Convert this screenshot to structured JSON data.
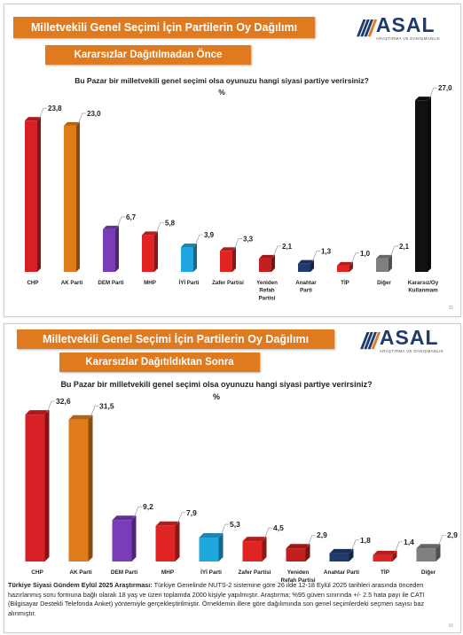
{
  "slide1": {
    "title": "Milletvekili Genel Seçimi İçin Partilerin Oy Dağılımı",
    "subtitle": "Kararsızlar Dağıtılmadan Önce",
    "question": "Bu Pazar bir milletvekili genel seçimi olsa oyunuzu hangi siyasi partiye verirsiniz?",
    "unit": "%",
    "page": "15"
  },
  "slide2": {
    "title": "Milletvekili Genel Seçimi İçin Partilerin Oy Dağılımı",
    "subtitle": "Kararsızlar Dağıtıldıktan Sonra",
    "question": "Bu Pazar bir milletvekili genel seçimi olsa oyunuzu hangi siyasi partiye verirsiniz?",
    "unit": "%",
    "page": "16",
    "footnote_title": "Türkiye Siyasi Gündem Eylül 2025 Araştırması:",
    "footnote_text": "Türkiye Genelinde NUTS-2 sistemine göre 26 ilde 12-18 Eylül 2025 tarihleri arasında önceden hazırlanmış soru formuna bağlı olarak 18 yaş ve üzeri toplamda 2000 kişiyle yapılmıştır. Araştırma; %95 güven sınırında +/- 2.5 hata payı ile CATI (Bilgisayar Destekli Telefonda Anket) yöntemiyle gerçekleştirilmiştir. Örneklemin illere göre dağılımında son genel seçimlerdeki seçmen sayısı baz alınmıştır."
  },
  "logo": {
    "name": "ASAL",
    "tagline": "ARAŞTIRMA VE DANIŞMANLIK"
  },
  "colors": {
    "banner": "#e07a1f",
    "CHP": "#d81f26",
    "AK Parti": "#e07b1a",
    "DEM Parti": "#7a3db8",
    "MHP": "#e02424",
    "İYİ Parti": "#1fa8e0",
    "Zafer Partisi": "#e02424",
    "Yeniden Refah Partisi": "#c41e1e",
    "Anahtar Parti": "#1f3b6e",
    "TİP": "#e02424",
    "Diğer": "#7f7f7f",
    "Kararsız/Oy Kullanmam": "#111111"
  },
  "chart_data": [
    {
      "type": "bar",
      "title": "Kararsızlar Dağıtılmadan Önce",
      "categories": [
        "CHP",
        "AK Parti",
        "DEM Parti",
        "MHP",
        "İYİ Parti",
        "Zafer Partisi",
        "Yeniden Refah Partisi",
        "Anahtar Parti",
        "TİP",
        "Diğer",
        "Kararsız/Oy Kullanmam"
      ],
      "category_lines": [
        [
          "CHP"
        ],
        [
          "AK Parti"
        ],
        [
          "DEM Parti"
        ],
        [
          "MHP"
        ],
        [
          "İYİ Parti"
        ],
        [
          "Zafer Partisi"
        ],
        [
          "Yeniden",
          "Refah",
          "Partisi"
        ],
        [
          "Anahtar",
          "Parti"
        ],
        [
          "TİP"
        ],
        [
          "Diğer"
        ],
        [
          "Kararsız/Oy",
          "Kullanmam"
        ]
      ],
      "values": [
        23.8,
        23.0,
        6.7,
        5.8,
        3.9,
        3.3,
        2.1,
        1.3,
        1.0,
        2.1,
        27.0
      ],
      "value_labels": [
        "23,8",
        "23,0",
        "6,7",
        "5,8",
        "3,9",
        "3,3",
        "2,1",
        "1,3",
        "1,0",
        "2,1",
        "27,0"
      ],
      "ylim": [
        0,
        28
      ],
      "grid": false,
      "legend": "none"
    },
    {
      "type": "bar",
      "title": "Kararsızlar Dağıtıldıktan Sonra",
      "categories": [
        "CHP",
        "AK Parti",
        "DEM Parti",
        "MHP",
        "İYİ Parti",
        "Zafer Partisi",
        "Yeniden Refah Partisi",
        "Anahtar Parti",
        "TİP",
        "Diğer"
      ],
      "category_lines": [
        [
          "CHP"
        ],
        [
          "AK Parti"
        ],
        [
          "DEM Parti"
        ],
        [
          "MHP"
        ],
        [
          "İYİ Parti"
        ],
        [
          "Zafer Partisi"
        ],
        [
          "Yeniden",
          "Refah Partisi"
        ],
        [
          "Anahtar Parti"
        ],
        [
          "TİP"
        ],
        [
          "Diğer"
        ]
      ],
      "values": [
        32.6,
        31.5,
        9.2,
        7.9,
        5.3,
        4.5,
        2.9,
        1.8,
        1.4,
        2.9
      ],
      "value_labels": [
        "32,6",
        "31,5",
        "9,2",
        "7,9",
        "5,3",
        "4,5",
        "2,9",
        "1,8",
        "1,4",
        "2,9"
      ],
      "ylim": [
        0,
        34
      ],
      "grid": false,
      "legend": "none"
    }
  ]
}
